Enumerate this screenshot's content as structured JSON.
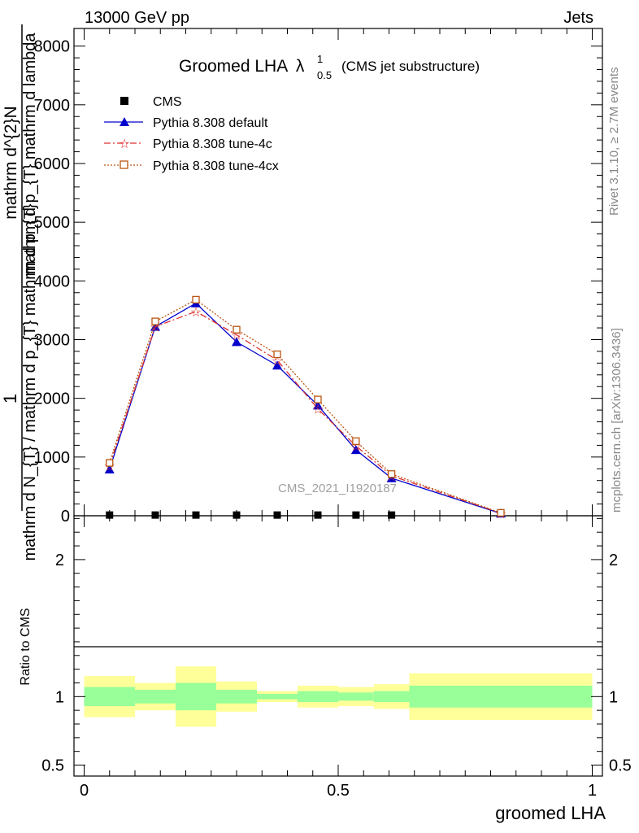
{
  "header": {
    "left": "13000 GeV pp",
    "right": "Jets"
  },
  "title": {
    "main": "Groomed LHA",
    "lambda": "λ",
    "sup": "1",
    "sub": "0.5",
    "note": "(CMS jet substructure)"
  },
  "side_labels": {
    "rivet": "Rivet 3.1.10, ≥ 2.7M events",
    "mcplots": "mcplots.cern.ch [arXiv:1306.3436]"
  },
  "watermark": "CMS_2021_I1920187",
  "ylabel_main": {
    "one": "1",
    "den": "mathrm d N_{T} / mathrm d p_{T} mathrm d p_{T}",
    "num": "mathrm d^{2}N",
    "num_den": "mathrm d p_{T} mathrm d lambda"
  },
  "ylabel_ratio": "Ratio to CMS",
  "xlabel": "groomed LHA",
  "legend": [
    "CMS",
    "Pythia 8.308 default",
    "Pythia 8.308 tune-4c",
    "Pythia 8.308 tune-4cx"
  ],
  "colors": {
    "cms": "#000000",
    "default": "#0000cc",
    "tune4c": "#dd3333",
    "tune4cx": "#bb5511",
    "band_inner": "#99ff99",
    "band_outer": "#ffff99"
  },
  "chart_data": {
    "type": "line",
    "x": [
      0.05,
      0.14,
      0.22,
      0.3,
      0.38,
      0.46,
      0.535,
      0.605,
      0.82
    ],
    "xlim": [
      -0.02,
      1.02
    ],
    "main_ylim": [
      0,
      8300
    ],
    "main_yticks": [
      0,
      1000,
      2000,
      3000,
      4000,
      5000,
      6000,
      7000,
      8000
    ],
    "main_ytick_labels": [
      "0",
      "1000",
      "2000",
      "3000",
      "4000",
      "5000",
      "6000",
      "7000",
      "8000"
    ],
    "series": [
      {
        "name": "CMS",
        "x": [
          0.05,
          0.14,
          0.22,
          0.3,
          0.38,
          0.46,
          0.535,
          0.605
        ],
        "values": [
          5,
          5,
          5,
          5,
          5,
          5,
          5,
          5
        ]
      },
      {
        "name": "Pythia 8.308 default",
        "values": [
          790,
          3220,
          3620,
          2960,
          2560,
          1880,
          1120,
          640,
          40
        ]
      },
      {
        "name": "Pythia 8.308 tune-4c",
        "values": [
          850,
          3220,
          3480,
          3080,
          2650,
          1820,
          1190,
          680,
          45
        ]
      },
      {
        "name": "Pythia 8.308 tune-4cx",
        "values": [
          900,
          3310,
          3680,
          3170,
          2750,
          1980,
          1270,
          710,
          50
        ]
      }
    ],
    "ratio_ylim": [
      0.42,
      2.32
    ],
    "ratio_yticks": [
      0.5,
      1,
      2
    ],
    "ratio_ytick_labels": [
      "0.5",
      "1",
      "2"
    ],
    "xticks": [
      0,
      0.5,
      1
    ],
    "xtick_labels": [
      "0",
      "0.5",
      "1"
    ],
    "ratio_bands": [
      {
        "x0": 0.0,
        "x1": 0.1,
        "inner": [
          0.93,
          1.07
        ],
        "outer": [
          0.85,
          1.15
        ]
      },
      {
        "x0": 0.1,
        "x1": 0.18,
        "inner": [
          0.95,
          1.05
        ],
        "outer": [
          0.9,
          1.1
        ]
      },
      {
        "x0": 0.18,
        "x1": 0.26,
        "inner": [
          0.9,
          1.1
        ],
        "outer": [
          0.78,
          1.22
        ]
      },
      {
        "x0": 0.26,
        "x1": 0.34,
        "inner": [
          0.95,
          1.05
        ],
        "outer": [
          0.89,
          1.11
        ]
      },
      {
        "x0": 0.34,
        "x1": 0.42,
        "inner": [
          0.98,
          1.02
        ],
        "outer": [
          0.96,
          1.04
        ]
      },
      {
        "x0": 0.42,
        "x1": 0.5,
        "inner": [
          0.96,
          1.04
        ],
        "outer": [
          0.92,
          1.08
        ]
      },
      {
        "x0": 0.5,
        "x1": 0.57,
        "inner": [
          0.97,
          1.03
        ],
        "outer": [
          0.93,
          1.07
        ]
      },
      {
        "x0": 0.57,
        "x1": 0.64,
        "inner": [
          0.96,
          1.04
        ],
        "outer": [
          0.91,
          1.09
        ]
      },
      {
        "x0": 0.64,
        "x1": 1.0,
        "inner": [
          0.92,
          1.08
        ],
        "outer": [
          0.83,
          1.17
        ]
      }
    ]
  }
}
